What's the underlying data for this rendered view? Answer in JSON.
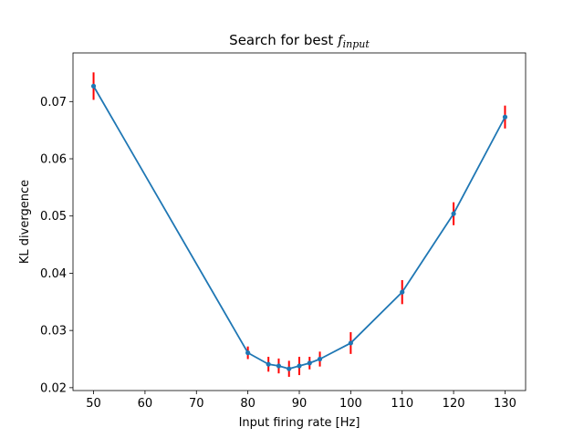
{
  "chart_data": {
    "type": "line",
    "title": "Search for best ",
    "title_symbol": "f",
    "title_subscript": "input",
    "xlabel": "Input firing rate [Hz]",
    "ylabel": "KL divergence",
    "xlim": [
      46,
      134
    ],
    "ylim": [
      0.0195,
      0.0785
    ],
    "xticks": [
      50,
      60,
      70,
      80,
      90,
      100,
      110,
      120,
      130
    ],
    "xtick_labels": [
      "50",
      "60",
      "70",
      "80",
      "90",
      "100",
      "110",
      "120",
      "130"
    ],
    "yticks": [
      0.02,
      0.03,
      0.04,
      0.05,
      0.06,
      0.07
    ],
    "ytick_labels": [
      "0.02",
      "0.03",
      "0.04",
      "0.05",
      "0.06",
      "0.07"
    ],
    "grid": false,
    "line_color": "#1f77b4",
    "errorbar_color": "#ff0000",
    "series": [
      {
        "x": [
          50,
          80,
          84,
          86,
          88,
          90,
          92,
          94,
          100,
          110,
          120,
          130
        ],
        "y": [
          0.0727,
          0.0261,
          0.0241,
          0.0238,
          0.0233,
          0.0238,
          0.0243,
          0.025,
          0.0278,
          0.0367,
          0.0504,
          0.0673
        ],
        "yerr": [
          0.0024,
          0.0011,
          0.0013,
          0.0013,
          0.0014,
          0.0016,
          0.0011,
          0.0013,
          0.0019,
          0.0021,
          0.002,
          0.002
        ]
      }
    ]
  }
}
